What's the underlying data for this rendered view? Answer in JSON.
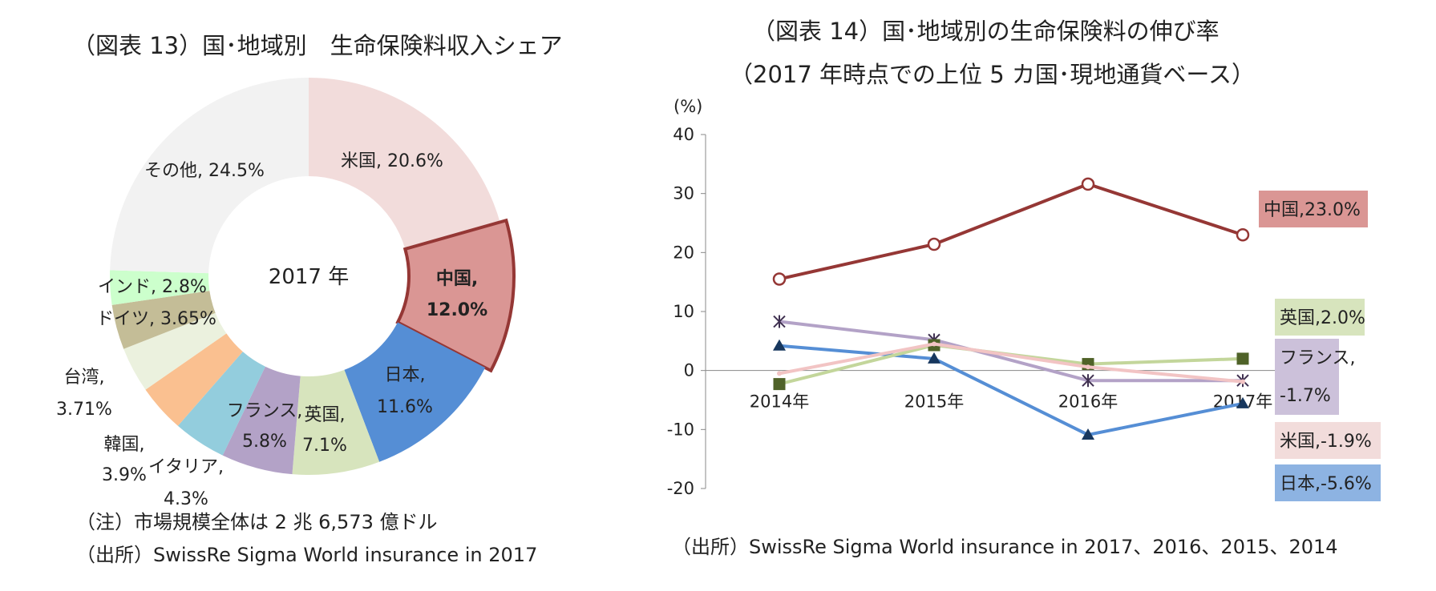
{
  "left_chart": {
    "title": "（図表 13）国･地域別　生命保険料収入シェア",
    "center_label": "2017 年",
    "note": "（注）市場規模全体は 2 兆 6,573 億ドル",
    "source": "（出所）SwissRe Sigma  World insurance in 2017"
  },
  "right_chart": {
    "title_line1": "（図表 14）国･地域別の生命保険料の伸び率",
    "title_line2": "（2017 年時点での上位 5 カ国･現地通貨ベース）",
    "y_unit": "(%)",
    "source": "（出所）SwissRe Sigma  World insurance in 2017、2016、2015、2014"
  },
  "chart_data": [
    {
      "type": "pie",
      "donut": true,
      "slices": [
        {
          "label": "米国, 20.6%",
          "value": 20.6,
          "color": "#f2dcdb"
        },
        {
          "label": "中国,",
          "label2": "12.0%",
          "value": 12.0,
          "color": "#da9694",
          "highlight": true
        },
        {
          "label": "日本,",
          "label2": "11.6%",
          "value": 11.6,
          "color": "#558ed5"
        },
        {
          "label": "英国,",
          "label2": "7.1%",
          "value": 7.1,
          "color": "#d7e4bd"
        },
        {
          "label": "フランス,",
          "label2": "5.8%",
          "value": 5.8,
          "color": "#b3a2c7"
        },
        {
          "label": "イタリア,",
          "label2": "4.3%",
          "value": 4.3,
          "color": "#93cddd"
        },
        {
          "label": "韓国,",
          "label2": "3.9%",
          "value": 3.9,
          "color": "#fac090"
        },
        {
          "label": "台湾,",
          "label2": "3.71%",
          "value": 3.71,
          "color": "#ebf1de"
        },
        {
          "label": "ドイツ, 3.65%",
          "value": 3.65,
          "color": "#c4bd97"
        },
        {
          "label": "インド, 2.8%",
          "value": 2.8,
          "color": "#ccffcc"
        },
        {
          "label": "その他, 24.5%",
          "value": 24.5,
          "color": "#f2f2f2"
        }
      ]
    },
    {
      "type": "line",
      "categories": [
        "2014年",
        "2015年",
        "2016年",
        "2017年"
      ],
      "ylim": [
        -20,
        40
      ],
      "yticks": [
        40,
        30,
        20,
        10,
        0,
        -10,
        -20
      ],
      "series": [
        {
          "name": "中国",
          "values": [
            15.5,
            21.4,
            31.6,
            23.0
          ],
          "color": "#953735",
          "marker": "circle",
          "end_label": "中国,23.0%",
          "label_bg": "#da9694"
        },
        {
          "name": "英国",
          "values": [
            -2.3,
            4.3,
            1.1,
            2.0
          ],
          "color": "#c3d69b",
          "marker": "square",
          "end_label": "英国,2.0%",
          "label_bg": "#d7e4bd"
        },
        {
          "name": "フランス",
          "values": [
            8.3,
            5.2,
            -1.7,
            -1.7
          ],
          "color": "#b3a2c7",
          "marker": "asterisk",
          "end_label": "フランス,",
          "end_label2": "-1.7%",
          "label_bg": "#ccc1da"
        },
        {
          "name": "米国",
          "values": [
            -0.5,
            4.5,
            0.6,
            -1.9
          ],
          "color": "#f2c4c4",
          "marker": "none",
          "end_label": "米国,-1.9%",
          "label_bg": "#f2dcdb"
        },
        {
          "name": "日本",
          "values": [
            4.2,
            2.0,
            -10.9,
            -5.6
          ],
          "color": "#558ed5",
          "marker": "triangle",
          "end_label": "日本,-5.6%",
          "label_bg": "#8db3e2"
        }
      ]
    }
  ]
}
